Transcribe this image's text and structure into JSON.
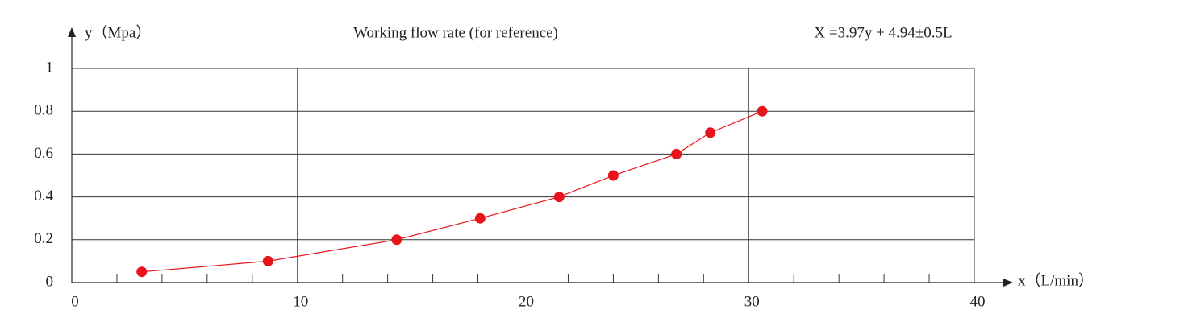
{
  "chart_data": {
    "type": "line",
    "title": "Working flow rate (for reference)",
    "annotation": "X =3.97y + 4.94±0.5L",
    "x_label": "x（L/min）",
    "y_label": "y（Mpa）",
    "x": [
      3.1,
      8.7,
      14.4,
      18.1,
      21.6,
      24.0,
      26.8,
      28.3,
      30.6
    ],
    "series": [
      {
        "name": "Working flow rate",
        "color": "#e8141c",
        "values": [
          0.05,
          0.1,
          0.2,
          0.3,
          0.4,
          0.5,
          0.6,
          0.7,
          0.8
        ]
      }
    ],
    "xlim": [
      0,
      40
    ],
    "xticks": [
      0,
      10,
      20,
      30,
      40
    ],
    "xminorticks": [
      2,
      4,
      6,
      8,
      12,
      14,
      16,
      18,
      22,
      24,
      26,
      28,
      32,
      34,
      36,
      38
    ],
    "ylim": [
      0,
      1
    ],
    "yticks": [
      0,
      0.2,
      0.4,
      0.6,
      0.8,
      1
    ],
    "grid": true
  }
}
